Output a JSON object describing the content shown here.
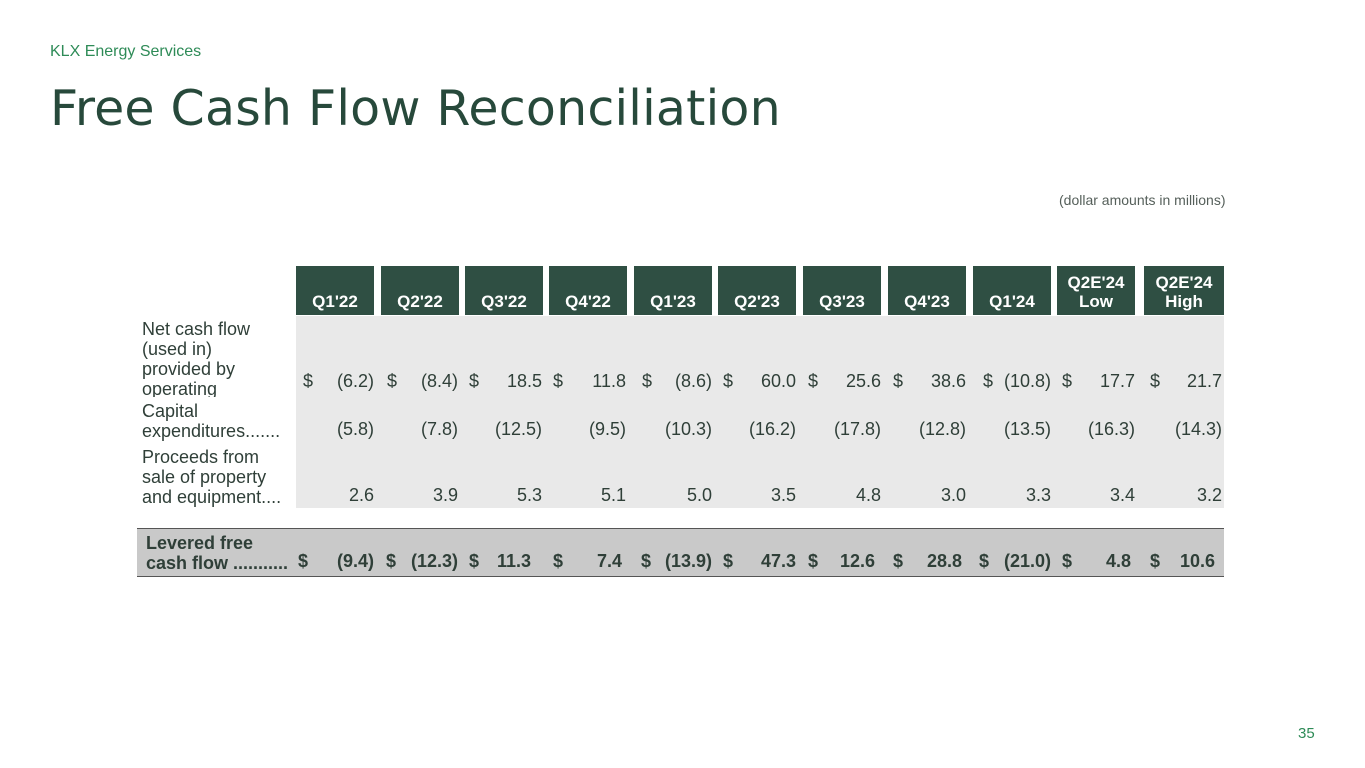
{
  "header": {
    "brand": "KLX Energy Services",
    "title": "Free Cash Flow Reconciliation",
    "note": "(dollar amounts in millions)"
  },
  "table": {
    "columns": [
      [
        "Q1'22"
      ],
      [
        "Q2'22"
      ],
      [
        "Q3'22"
      ],
      [
        "Q4'22"
      ],
      [
        "Q1'23"
      ],
      [
        "Q2'23"
      ],
      [
        "Q3'23"
      ],
      [
        "Q4'23"
      ],
      [
        "Q1'24"
      ],
      [
        "Q2E'24",
        "Low"
      ],
      [
        "Q2E'24",
        "High"
      ]
    ],
    "rows": [
      {
        "label_lines": [
          "Net cash flow",
          "(used in)",
          "provided by",
          "operating"
        ],
        "values": [
          "(6.2)",
          "(8.4)",
          "18.5",
          "11.8",
          "(8.6)",
          "60.0",
          "25.6",
          "38.6",
          "(10.8)",
          "17.7",
          "21.7"
        ],
        "currency": "$"
      },
      {
        "label_lines": [
          "Capital",
          "expenditures......."
        ],
        "values": [
          "(5.8)",
          "(7.8)",
          "(12.5)",
          "(9.5)",
          "(10.3)",
          "(16.2)",
          "(17.8)",
          "(12.8)",
          "(13.5)",
          "(16.3)",
          "(14.3)"
        ]
      },
      {
        "label_lines": [
          "Proceeds from",
          "sale of property",
          "and equipment...."
        ],
        "values": [
          "2.6",
          "3.9",
          "5.3",
          "5.1",
          "5.0",
          "3.5",
          "4.8",
          "3.0",
          "3.3",
          "3.4",
          "3.2"
        ]
      }
    ],
    "total": {
      "label_lines": [
        "Levered free",
        "cash flow ..........."
      ],
      "values": [
        "(9.4)",
        "(12.3)",
        "11.3",
        "7.4",
        "(13.9)",
        "47.3",
        "12.6",
        "28.8",
        "(21.0)",
        "4.8",
        "10.6"
      ],
      "currency": "$"
    }
  },
  "footer": {
    "page_number": "35"
  }
}
